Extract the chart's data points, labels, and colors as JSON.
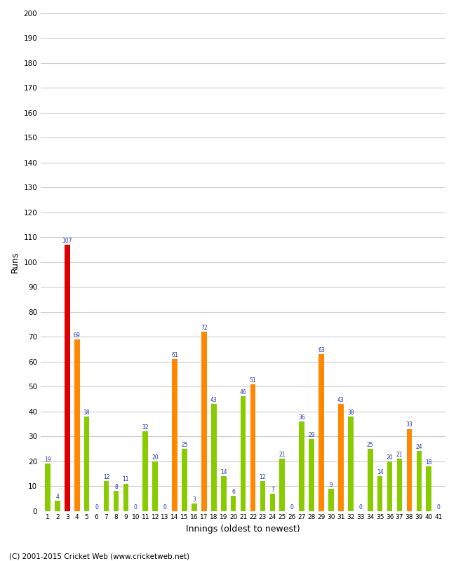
{
  "xlabel": "Innings (oldest to newest)",
  "ylabel": "Runs",
  "footer": "(C) 2001-2015 Cricket Web (www.cricketweb.net)",
  "ylim": [
    0,
    200
  ],
  "green_color": "#88cc00",
  "orange_color": "#ff8800",
  "red_color": "#dd0000",
  "text_color": "#2233bb",
  "bg_color": "#ffffff",
  "grid_color": "#cccccc",
  "bar_data": [
    [
      1,
      19,
      "green"
    ],
    [
      2,
      4,
      "green"
    ],
    [
      3,
      107,
      "red"
    ],
    [
      4,
      69,
      "orange"
    ],
    [
      5,
      38,
      "green"
    ],
    [
      6,
      0,
      "green"
    ],
    [
      7,
      12,
      "green"
    ],
    [
      8,
      8,
      "green"
    ],
    [
      9,
      11,
      "green"
    ],
    [
      10,
      0,
      "green"
    ],
    [
      11,
      32,
      "green"
    ],
    [
      12,
      20,
      "green"
    ],
    [
      13,
      0,
      "green"
    ],
    [
      14,
      61,
      "orange"
    ],
    [
      15,
      25,
      "green"
    ],
    [
      16,
      3,
      "green"
    ],
    [
      17,
      72,
      "orange"
    ],
    [
      18,
      43,
      "green"
    ],
    [
      19,
      14,
      "green"
    ],
    [
      20,
      6,
      "green"
    ],
    [
      21,
      46,
      "green"
    ],
    [
      22,
      51,
      "orange"
    ],
    [
      23,
      12,
      "green"
    ],
    [
      24,
      7,
      "green"
    ],
    [
      25,
      21,
      "green"
    ],
    [
      26,
      0,
      "green"
    ],
    [
      27,
      36,
      "green"
    ],
    [
      28,
      29,
      "green"
    ],
    [
      29,
      63,
      "orange"
    ],
    [
      30,
      9,
      "green"
    ],
    [
      31,
      43,
      "orange"
    ],
    [
      32,
      38,
      "green"
    ],
    [
      33,
      0,
      "green"
    ],
    [
      34,
      25,
      "green"
    ],
    [
      35,
      14,
      "green"
    ],
    [
      36,
      20,
      "green"
    ],
    [
      37,
      21,
      "green"
    ],
    [
      38,
      33,
      "orange"
    ],
    [
      39,
      24,
      "green"
    ],
    [
      40,
      18,
      "green"
    ],
    [
      41,
      0,
      "green"
    ]
  ]
}
